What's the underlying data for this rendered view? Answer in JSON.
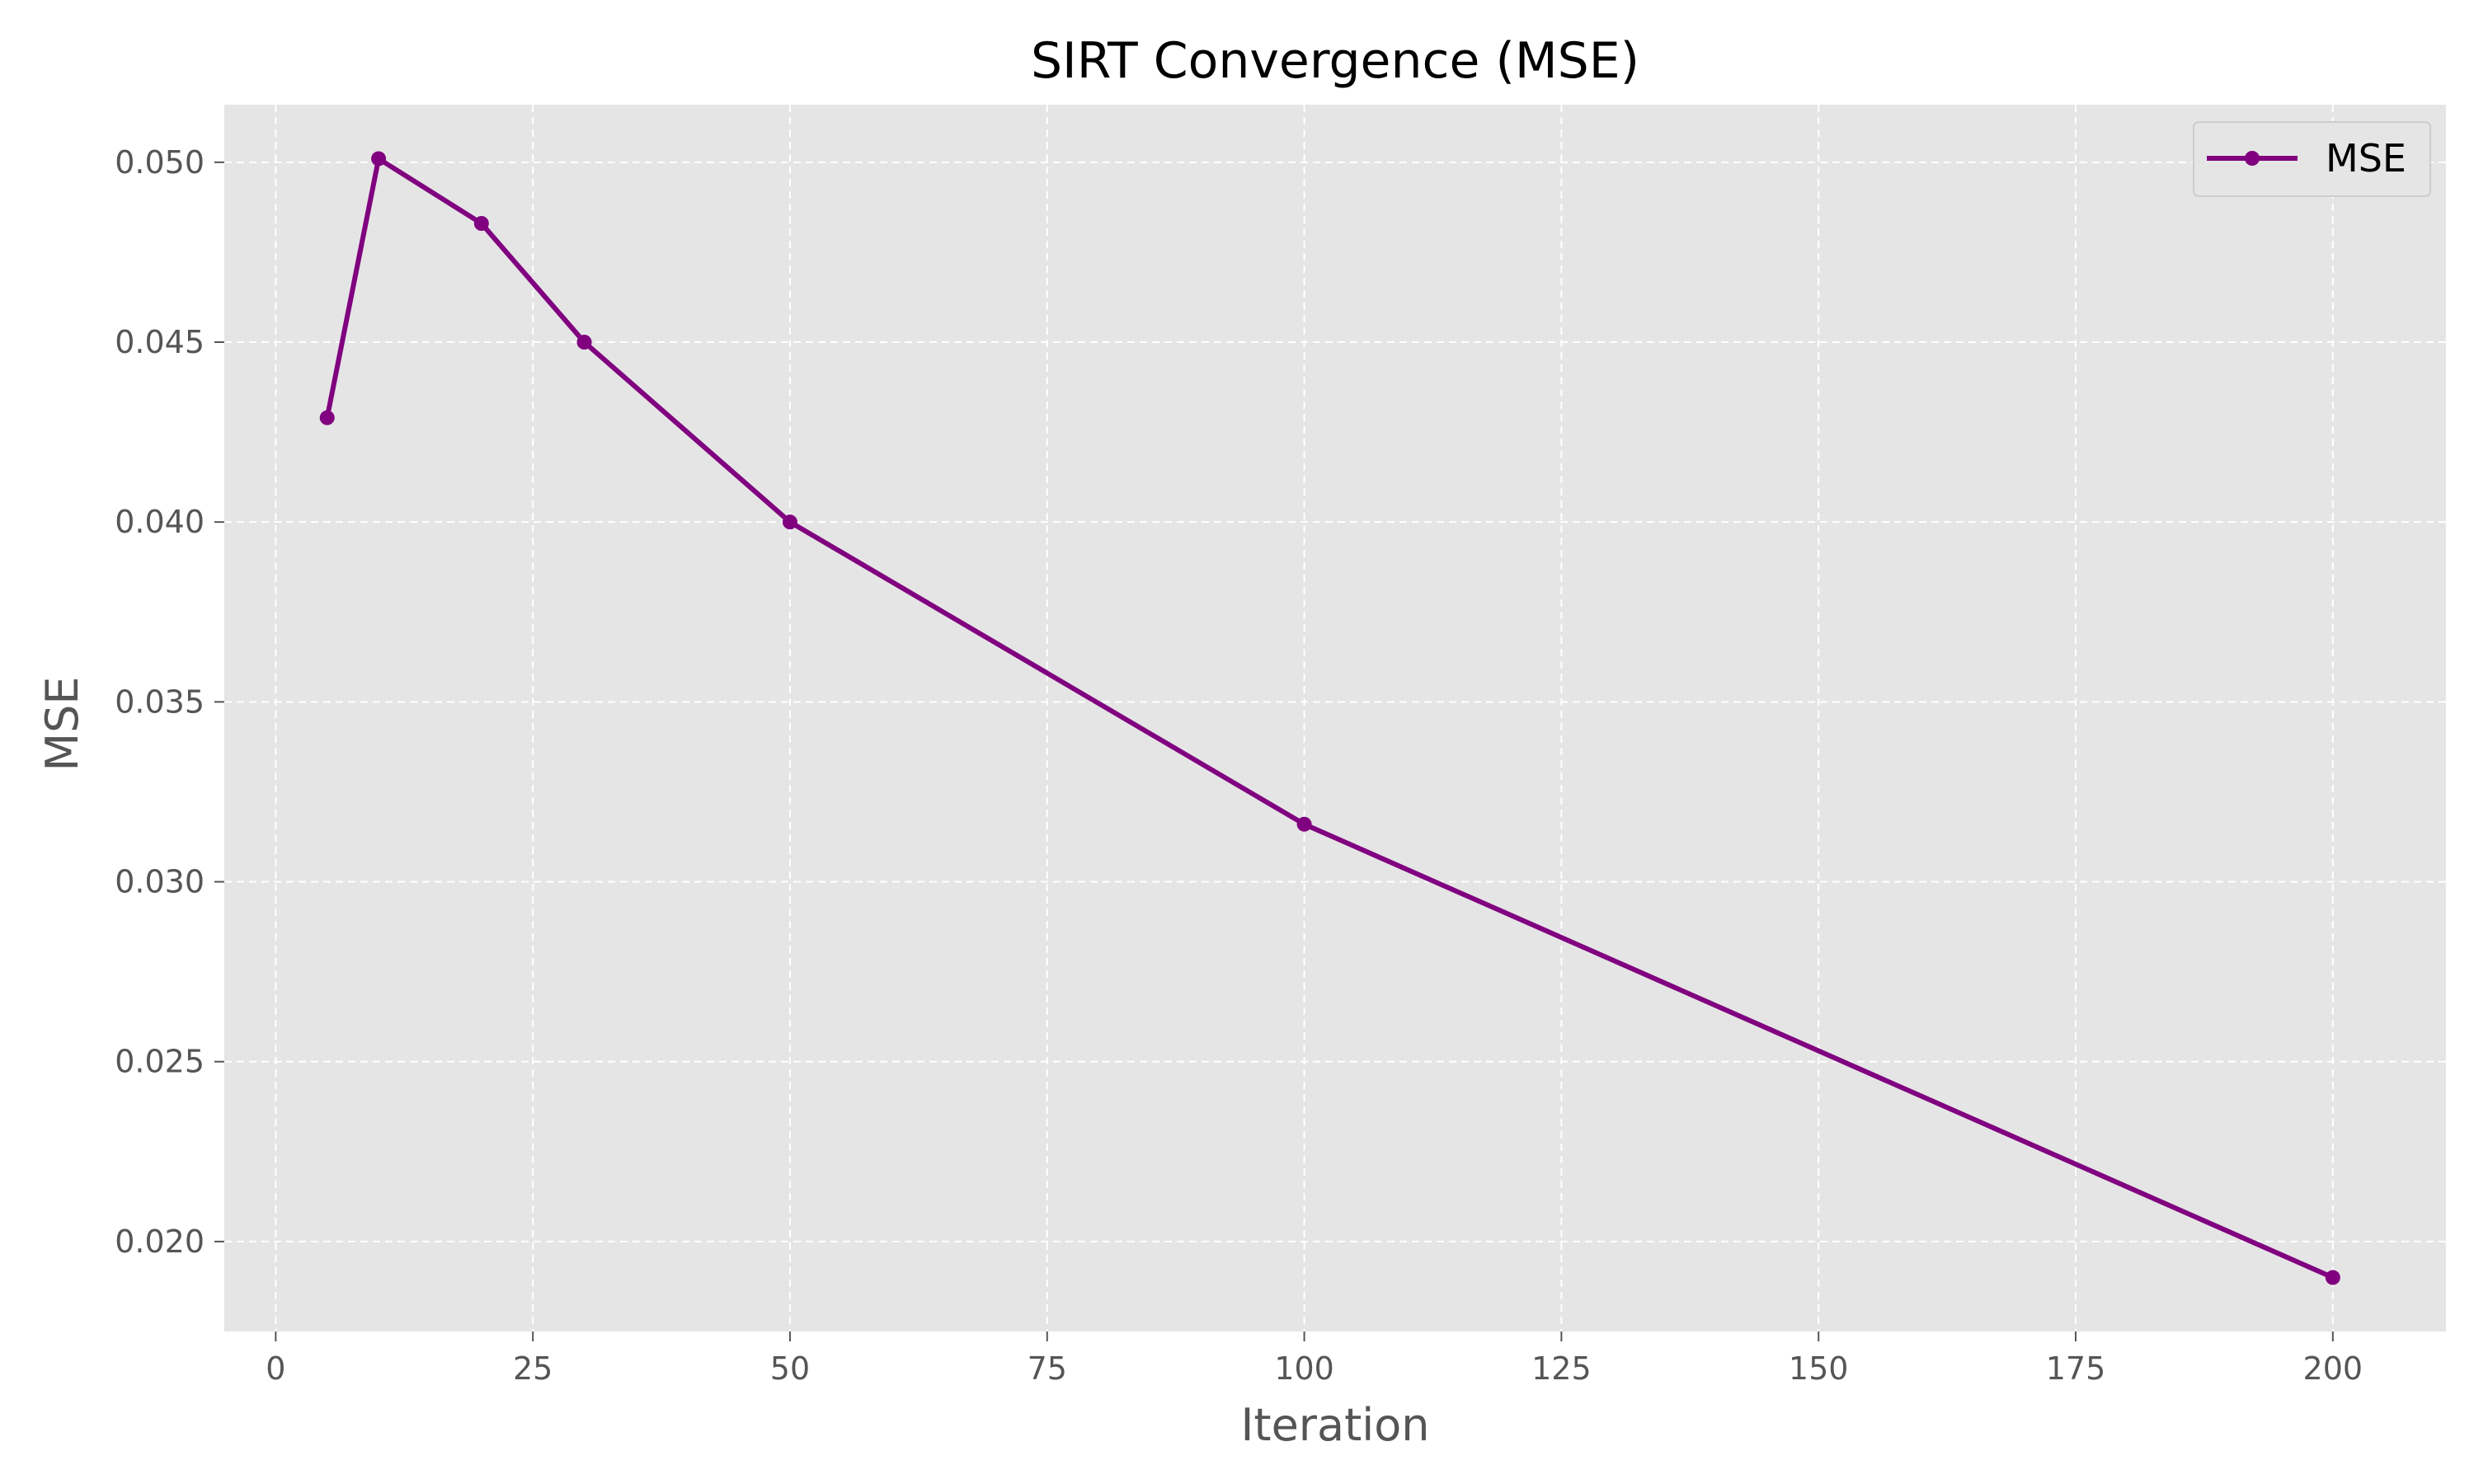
{
  "chart_data": {
    "type": "line",
    "title": "SIRT Convergence (MSE)",
    "xlabel": "Iteration",
    "ylabel": "MSE",
    "xlim": [
      -5,
      211
    ],
    "ylim": [
      0.0175,
      0.0516
    ],
    "xticks": [
      0,
      25,
      50,
      75,
      100,
      125,
      150,
      175,
      200
    ],
    "xtick_labels": [
      "0",
      "25",
      "50",
      "75",
      "100",
      "125",
      "150",
      "175",
      "200"
    ],
    "yticks": [
      0.02,
      0.025,
      0.03,
      0.035,
      0.04,
      0.045,
      0.05
    ],
    "ytick_labels": [
      "0.020",
      "0.025",
      "0.030",
      "0.035",
      "0.040",
      "0.045",
      "0.050"
    ],
    "grid": true,
    "legend_position": "top-right",
    "series": [
      {
        "name": "MSE",
        "color": "#800080",
        "marker": "circle",
        "x": [
          5,
          10,
          20,
          30,
          50,
          100,
          200
        ],
        "y": [
          0.0429,
          0.0501,
          0.0483,
          0.045,
          0.04,
          0.0316,
          0.019
        ]
      }
    ]
  },
  "colors": {
    "plot_background": "#e5e5e5",
    "grid": "#ffffff",
    "tick_text": "#555555",
    "axis_label": "#555555",
    "title": "#000000"
  }
}
